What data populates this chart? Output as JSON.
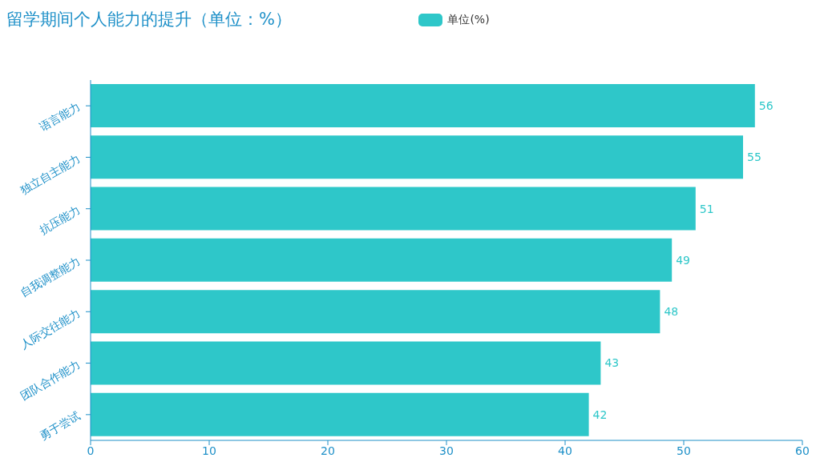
{
  "chart_data": {
    "type": "bar",
    "orientation": "horizontal",
    "title": "留学期间个人能力的提升（单位：%）",
    "categories": [
      "语言能力",
      "独立自主能力",
      "抗压能力",
      "自我调整能力",
      "人际交往能力",
      "团队合作能力",
      "勇于尝试"
    ],
    "series": [
      {
        "name": "单位(%)",
        "color": "#2ec7c9",
        "values": [
          56,
          55,
          51,
          49,
          48,
          43,
          42
        ]
      }
    ],
    "xlim": [
      0,
      60
    ],
    "xticks": [
      0,
      10,
      20,
      30,
      40,
      50,
      60
    ],
    "legend": "top",
    "data_labels": true
  }
}
